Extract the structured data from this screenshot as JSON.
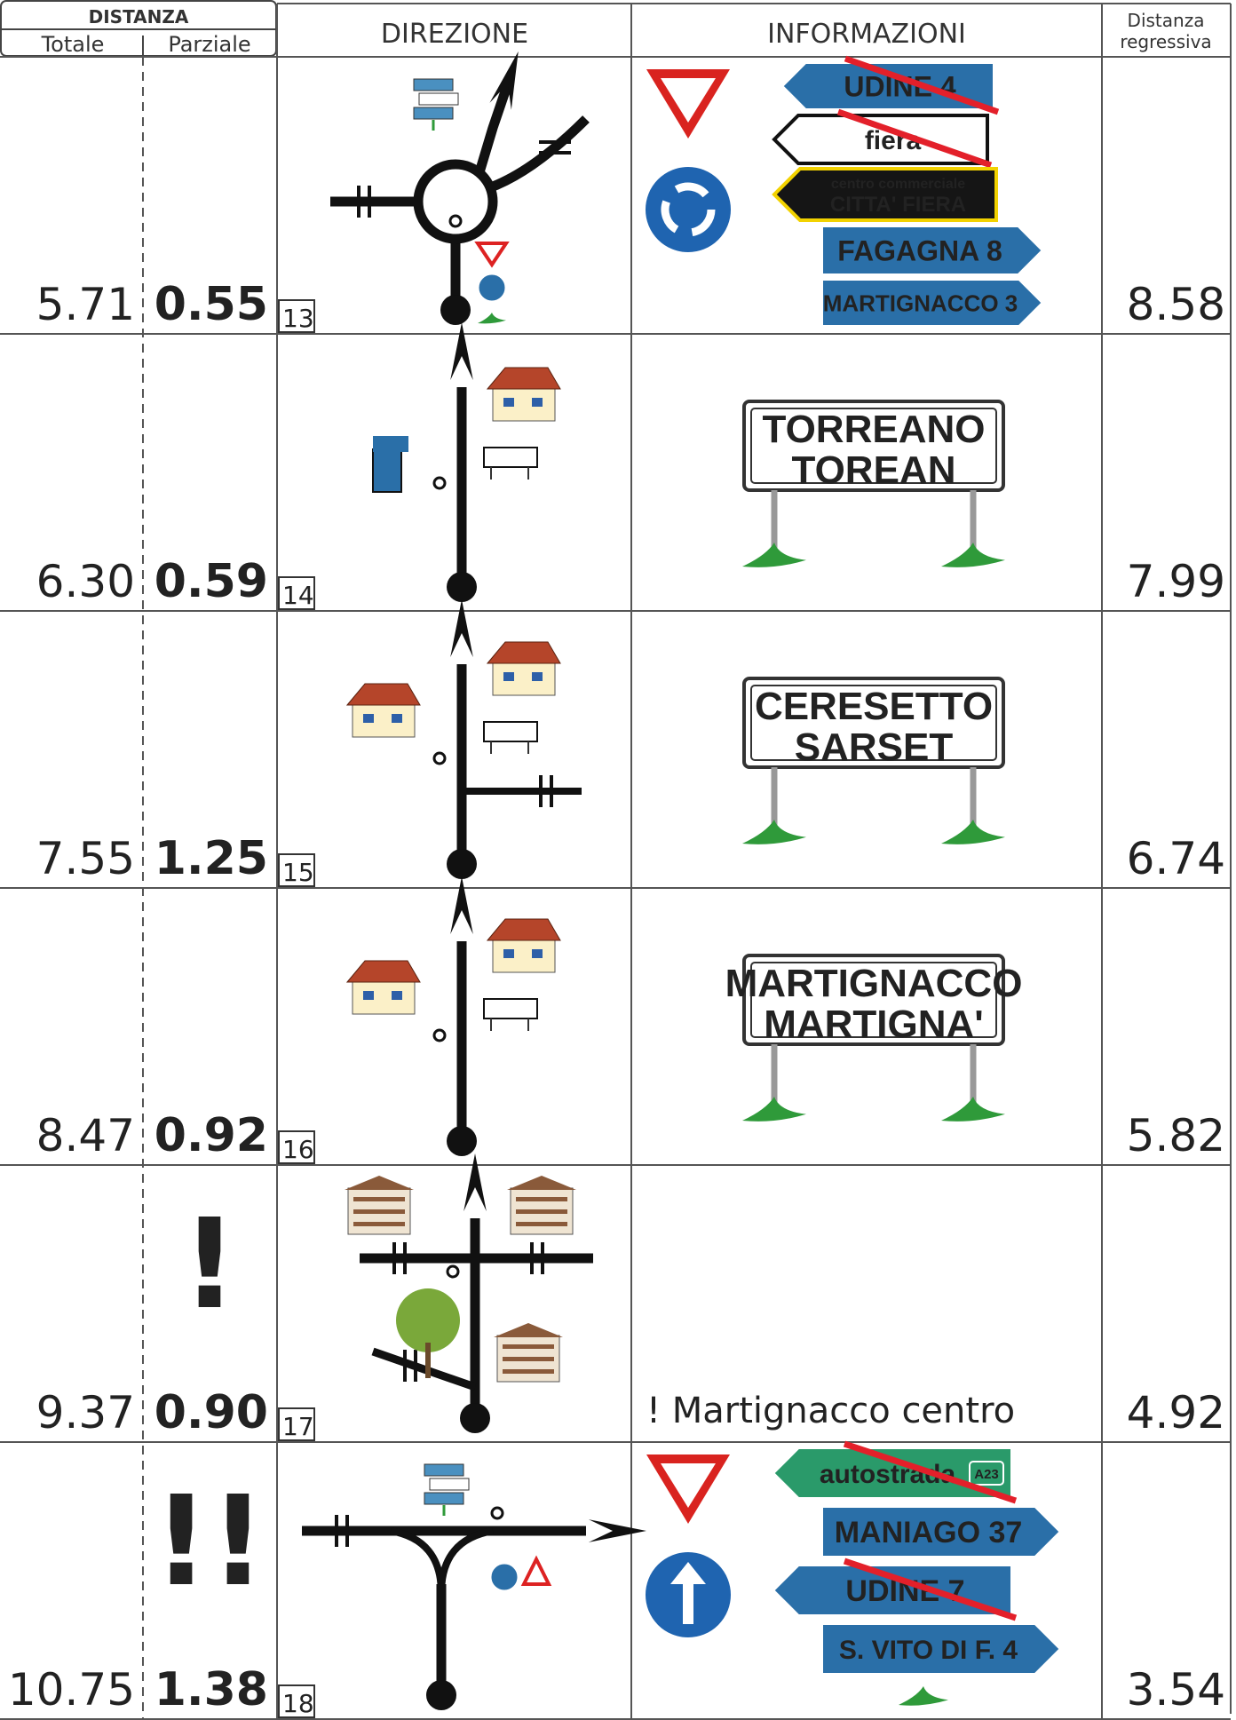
{
  "header": {
    "distanza": "DISTANZA",
    "totale": "Totale",
    "parziale": "Parziale",
    "direzione": "DIREZIONE",
    "informazioni": "INFORMAZIONI",
    "regressiva": [
      "Distanza",
      "regressiva"
    ]
  },
  "rows": [
    {
      "totale": "5.71",
      "parziale": "0.55",
      "number": "13",
      "regressiva": "8.58",
      "signs": [
        {
          "lines": [
            "UDINE 4"
          ]
        },
        {
          "lines": [
            "fiera"
          ]
        },
        {
          "lines": [
            "centro commerciale",
            "CITTA' FIERA"
          ]
        },
        {
          "lines": [
            "FAGAGNA 8"
          ]
        },
        {
          "lines": [
            "MARTIGNACCO 3"
          ]
        }
      ]
    },
    {
      "totale": "6.30",
      "parziale": "0.59",
      "number": "14",
      "regressiva": "7.99",
      "board": [
        "TORREANO",
        "TOREAN"
      ]
    },
    {
      "totale": "7.55",
      "parziale": "1.25",
      "number": "15",
      "regressiva": "6.74",
      "board": [
        "CERESETTO",
        "SARSET"
      ]
    },
    {
      "totale": "8.47",
      "parziale": "0.92",
      "number": "16",
      "regressiva": "5.82",
      "board": [
        "MARTIGNACCO",
        "MARTIGNA'"
      ]
    },
    {
      "totale": "9.37",
      "parziale": "0.90",
      "number": "17",
      "regressiva": "4.92",
      "alert": "!",
      "note": "! Martignacco centro"
    },
    {
      "totale": "10.75",
      "parziale": "1.38",
      "number": "18",
      "regressiva": "3.54",
      "alert": "!!",
      "signs": [
        {
          "lines": [
            "autostrada",
            "A23"
          ]
        },
        {
          "lines": [
            "MANIAGO 37"
          ]
        },
        {
          "lines": [
            "UDINE 7"
          ]
        },
        {
          "lines": [
            "S. VITO DI F. 4"
          ]
        }
      ]
    }
  ]
}
